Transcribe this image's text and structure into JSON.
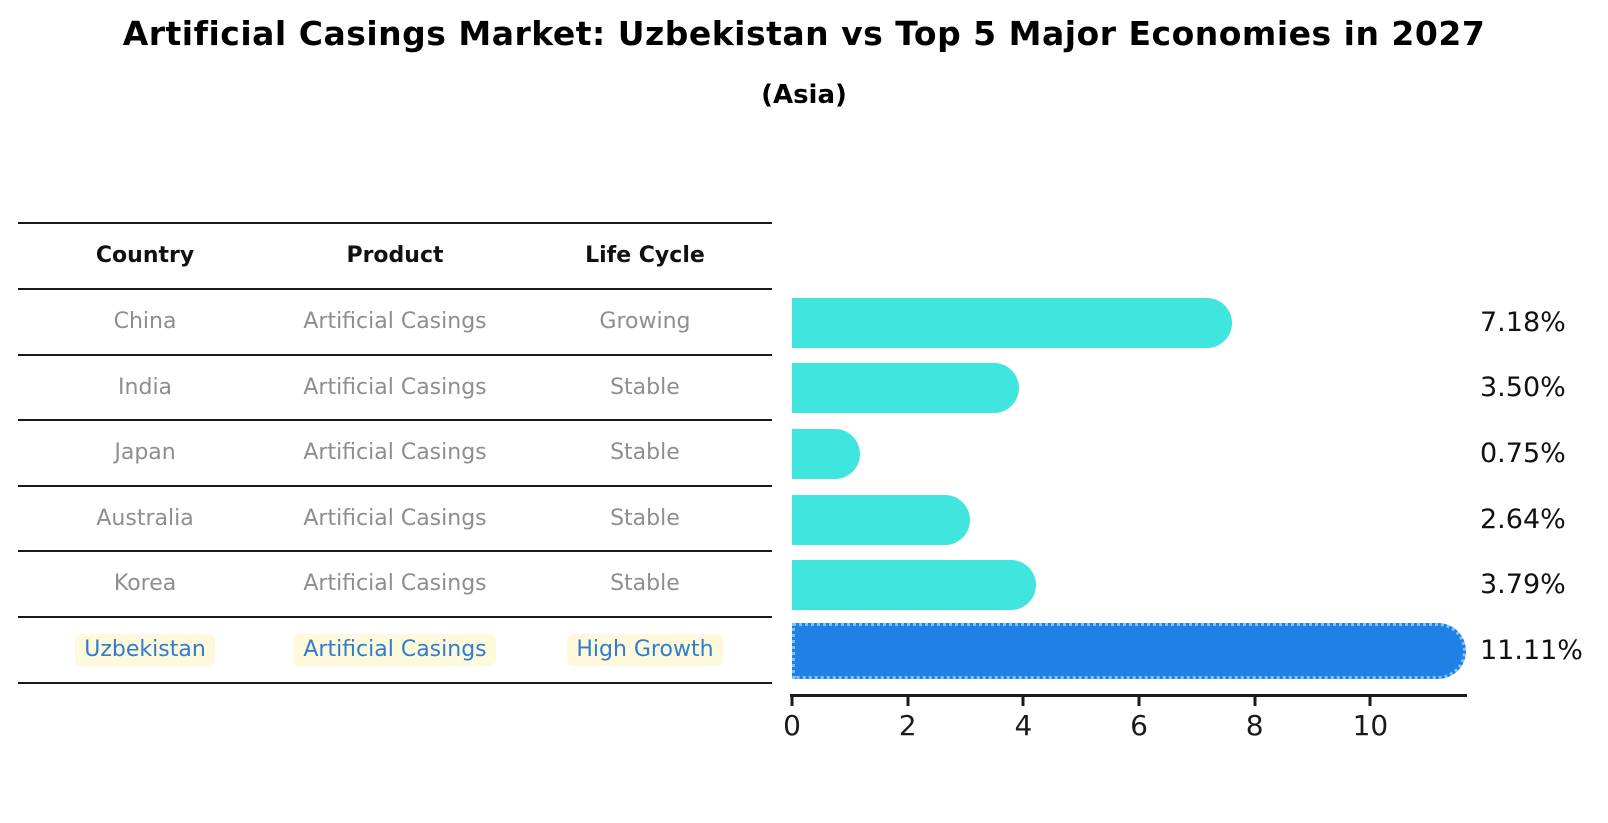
{
  "chart_data": {
    "type": "bar",
    "orientation": "horizontal",
    "title": "Artificial Casings Market: Uzbekistan vs Top 5 Major Economies in 2027",
    "subtitle": "(Asia)",
    "categories": [
      "China",
      "India",
      "Japan",
      "Australia",
      "Korea",
      "Uzbekistan"
    ],
    "values": [
      7.18,
      3.5,
      0.75,
      2.64,
      3.79,
      11.11
    ],
    "value_labels": [
      "7.18%",
      "3.50%",
      "0.75%",
      "2.64%",
      "3.79%",
      "11.11%"
    ],
    "xlim": [
      0,
      11.67
    ],
    "xticks": [
      "0",
      "2",
      "4",
      "6",
      "8",
      "10"
    ],
    "grid": false,
    "legend": "none",
    "bar_color": "#40E5DE",
    "highlight_index": 5,
    "highlight_bar_color": "#1F80E6",
    "highlight_edge_color": "#7FC2F5",
    "highlight_text_color": "#2E7DD1",
    "value_label_color": "#111111"
  },
  "table": {
    "columns": [
      "Country",
      "Product",
      "Life Cycle"
    ],
    "rows": [
      {
        "country": "China",
        "product": "Artificial Casings",
        "life_cycle": "Growing",
        "highlight": false
      },
      {
        "country": "India",
        "product": "Artificial Casings",
        "life_cycle": "Stable",
        "highlight": false
      },
      {
        "country": "Japan",
        "product": "Artificial Casings",
        "life_cycle": "Stable",
        "highlight": false
      },
      {
        "country": "Australia",
        "product": "Artificial Casings",
        "life_cycle": "Stable",
        "highlight": false
      },
      {
        "country": "Korea",
        "product": "Artificial Casings",
        "life_cycle": "Stable",
        "highlight": false
      },
      {
        "country": "Uzbekistan",
        "product": "Artificial Casings",
        "life_cycle": "High Growth",
        "highlight": true
      }
    ]
  }
}
